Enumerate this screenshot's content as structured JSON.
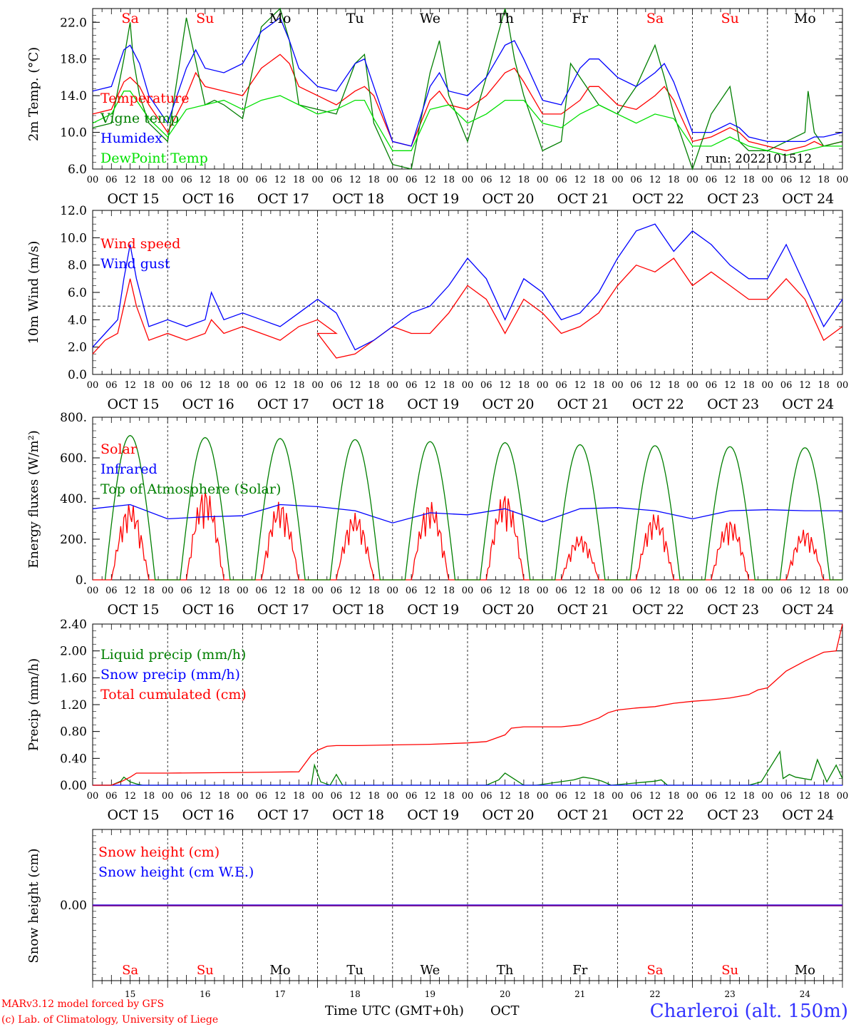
{
  "meta": {
    "footer_left_1": "MARv3.12 model forced by GFS",
    "footer_left_2": "(c) Lab. of Climatology, University of Liege",
    "x_title": "Time UTC (GMT+0h)",
    "x_month": "OCT",
    "station": "Charleroi (alt. 150m)",
    "run": "run: 2022101512"
  },
  "time_axis": {
    "hour_labels": [
      "00",
      "06",
      "12",
      "18"
    ],
    "end_label": "00",
    "dates": [
      "OCT 15",
      "OCT 16",
      "OCT 17",
      "OCT 18",
      "OCT 19",
      "OCT 20",
      "OCT 21",
      "OCT 22",
      "OCT 23",
      "OCT 24"
    ],
    "weekdays": [
      "Sa",
      "Su",
      "Mo",
      "Tu",
      "We",
      "Th",
      "Fr",
      "Sa",
      "Su",
      "Mo"
    ],
    "weekend_flags": [
      true,
      true,
      false,
      false,
      false,
      false,
      false,
      true,
      true,
      false
    ],
    "day_numbers": [
      "15",
      "16",
      "17",
      "18",
      "19",
      "20",
      "21",
      "22",
      "23",
      "24"
    ]
  },
  "colors": {
    "red": "#ff0000",
    "green": "#007f00",
    "blue": "#0000ff",
    "light_green": "#00e000",
    "purple": "#7f007f",
    "axis": "#000000"
  },
  "chart_data": [
    {
      "type": "line",
      "panel": "temperature",
      "ylabel": "2m Temp. (°C)",
      "ylim": [
        6.0,
        23.5
      ],
      "yticks": [
        "6.0",
        "10.0",
        "14.0",
        "18.0",
        "22.0"
      ],
      "x_unit": "hours since Oct 15 00 UTC",
      "series": [
        {
          "name": "Temperature",
          "color": "#ff0000",
          "x": [
            0,
            6,
            10,
            12,
            15,
            18,
            24,
            30,
            33,
            36,
            42,
            48,
            54,
            60,
            63,
            66,
            72,
            78,
            84,
            87,
            90,
            96,
            102,
            108,
            111,
            114,
            120,
            126,
            132,
            135,
            138,
            144,
            150,
            156,
            159,
            162,
            168,
            174,
            180,
            183,
            186,
            192,
            198,
            204,
            207,
            210,
            216,
            222,
            228,
            231,
            234,
            240
          ],
          "y": [
            12.0,
            12.5,
            15.5,
            16.0,
            15.0,
            13.0,
            10.0,
            14.0,
            16.5,
            15.0,
            14.5,
            14.0,
            17.0,
            18.5,
            17.5,
            15.0,
            14.0,
            13.0,
            14.5,
            15.0,
            14.0,
            9.0,
            8.5,
            13.5,
            14.5,
            13.0,
            12.5,
            14.0,
            16.5,
            17.0,
            15.5,
            12.0,
            12.0,
            13.5,
            15.0,
            15.0,
            13.0,
            12.5,
            14.0,
            15.0,
            13.5,
            9.0,
            9.5,
            10.5,
            10.0,
            9.0,
            8.5,
            8.0,
            8.5,
            9.0,
            8.5,
            9.0
          ]
        },
        {
          "name": "Vigne temp",
          "color": "#007f00",
          "x": [
            0,
            6,
            10,
            12,
            13,
            15,
            18,
            24,
            30,
            36,
            39,
            42,
            48,
            54,
            60,
            63,
            66,
            72,
            78,
            84,
            87,
            90,
            96,
            102,
            108,
            111,
            114,
            120,
            126,
            132,
            133,
            135,
            138,
            144,
            150,
            153,
            156,
            162,
            168,
            174,
            180,
            183,
            186,
            192,
            198,
            204,
            207,
            210,
            216,
            222,
            228,
            229,
            231,
            234,
            240
          ],
          "y": [
            10.5,
            11.0,
            18.0,
            22.0,
            18.0,
            14.0,
            11.0,
            9.0,
            22.5,
            13.0,
            13.5,
            13.0,
            11.5,
            21.5,
            23.5,
            20.0,
            13.0,
            12.5,
            12.0,
            17.5,
            18.5,
            11.0,
            6.5,
            6.0,
            16.5,
            20.0,
            14.0,
            9.0,
            16.0,
            23.5,
            22.0,
            18.0,
            14.0,
            8.0,
            9.0,
            17.5,
            16.0,
            13.0,
            12.0,
            15.0,
            19.5,
            16.0,
            12.0,
            6.0,
            12.0,
            15.0,
            9.0,
            8.0,
            8.0,
            9.0,
            10.0,
            14.5,
            10.0,
            8.5,
            9.0
          ]
        },
        {
          "name": "Humidex",
          "color": "#0000ff",
          "x": [
            0,
            6,
            10,
            12,
            15,
            18,
            24,
            30,
            33,
            36,
            42,
            48,
            54,
            60,
            63,
            66,
            72,
            78,
            84,
            87,
            90,
            96,
            102,
            108,
            111,
            114,
            120,
            126,
            132,
            135,
            138,
            144,
            150,
            156,
            159,
            162,
            168,
            174,
            180,
            183,
            186,
            192,
            198,
            204,
            207,
            210,
            216,
            222,
            228,
            231,
            234,
            240
          ],
          "y": [
            14.5,
            15.0,
            19.0,
            19.5,
            17.5,
            14.0,
            11.0,
            17.0,
            19.0,
            17.0,
            16.5,
            17.5,
            21.0,
            22.5,
            20.0,
            17.0,
            15.0,
            14.5,
            17.5,
            18.0,
            15.0,
            9.0,
            8.5,
            15.0,
            16.5,
            14.5,
            14.0,
            16.0,
            19.5,
            20.0,
            18.0,
            13.5,
            13.0,
            17.0,
            18.0,
            18.0,
            16.0,
            15.0,
            16.5,
            17.5,
            15.5,
            10.0,
            10.0,
            11.0,
            10.5,
            9.5,
            9.0,
            9.0,
            9.0,
            9.5,
            9.5,
            10.0
          ]
        },
        {
          "name": "DewPoint Temp",
          "color": "#00e000",
          "x": [
            0,
            6,
            10,
            12,
            15,
            18,
            24,
            30,
            36,
            42,
            48,
            54,
            60,
            66,
            72,
            78,
            84,
            87,
            90,
            96,
            102,
            108,
            114,
            120,
            126,
            132,
            138,
            144,
            150,
            156,
            162,
            168,
            174,
            180,
            186,
            192,
            198,
            204,
            210,
            216,
            222,
            228,
            234,
            240
          ],
          "y": [
            11.0,
            12.0,
            14.5,
            14.5,
            13.0,
            11.5,
            9.5,
            12.5,
            13.0,
            13.5,
            12.5,
            13.5,
            14.0,
            13.0,
            12.0,
            12.5,
            13.5,
            13.5,
            11.5,
            8.0,
            8.0,
            12.5,
            13.0,
            11.0,
            12.0,
            13.5,
            13.5,
            11.0,
            10.5,
            12.0,
            13.0,
            12.0,
            11.0,
            12.0,
            11.5,
            8.5,
            8.5,
            9.5,
            8.5,
            8.0,
            7.5,
            8.0,
            8.5,
            8.5
          ]
        }
      ]
    },
    {
      "type": "line",
      "panel": "wind",
      "ylabel": "10m Wind (m/s)",
      "ylim": [
        0.0,
        12.0
      ],
      "yticks": [
        "0.0",
        "2.0",
        "4.0",
        "6.0",
        "8.0",
        "10.0",
        "12.0"
      ],
      "reference_line": 5.0,
      "series": [
        {
          "name": "Wind speed",
          "color": "#ff0000",
          "x": [
            0,
            4,
            8,
            10,
            12,
            14,
            18,
            24,
            30,
            36,
            38,
            42,
            48,
            54,
            60,
            66,
            72,
            78,
            72,
            78,
            84,
            90,
            96,
            102,
            108,
            114,
            120,
            126,
            132,
            138,
            144,
            150,
            156,
            162,
            168,
            174,
            180,
            186,
            192,
            198,
            204,
            210,
            216,
            222,
            228,
            234,
            240
          ],
          "y": [
            1.5,
            2.5,
            3.0,
            5.0,
            7.0,
            5.0,
            2.5,
            3.0,
            2.5,
            3.0,
            4.0,
            3.0,
            3.5,
            3.0,
            2.5,
            3.5,
            4.0,
            3.0,
            3.0,
            1.2,
            1.5,
            2.5,
            3.5,
            3.0,
            3.0,
            4.5,
            6.5,
            5.5,
            3.0,
            5.5,
            4.5,
            3.0,
            3.5,
            4.5,
            6.5,
            8.0,
            7.5,
            8.5,
            6.5,
            7.5,
            6.5,
            5.5,
            5.5,
            7.0,
            5.5,
            2.5,
            3.5
          ]
        },
        {
          "name": "Wind gust",
          "color": "#0000ff",
          "x": [
            0,
            4,
            8,
            10,
            12,
            14,
            18,
            24,
            30,
            36,
            38,
            42,
            48,
            54,
            60,
            66,
            72,
            78,
            84,
            90,
            96,
            102,
            108,
            114,
            120,
            126,
            132,
            138,
            144,
            150,
            156,
            162,
            168,
            174,
            180,
            186,
            192,
            198,
            204,
            210,
            216,
            222,
            228,
            234,
            240
          ],
          "y": [
            2.0,
            3.0,
            4.0,
            7.0,
            9.5,
            7.0,
            3.5,
            4.0,
            3.5,
            4.0,
            6.0,
            4.0,
            4.5,
            4.0,
            3.5,
            4.5,
            5.5,
            4.5,
            1.8,
            2.5,
            3.5,
            4.5,
            5.0,
            6.5,
            8.5,
            7.0,
            4.0,
            7.0,
            6.0,
            4.0,
            4.5,
            6.0,
            8.5,
            10.5,
            11.0,
            9.0,
            10.5,
            9.5,
            8.0,
            7.0,
            7.0,
            9.5,
            6.5,
            3.5,
            5.5
          ]
        }
      ]
    },
    {
      "type": "line",
      "panel": "energy",
      "ylabel": "Energy fluxes (W/m²)",
      "ylim": [
        0,
        800
      ],
      "yticks": [
        "0.",
        "200.",
        "400.",
        "600.",
        "800."
      ],
      "series": [
        {
          "name": "Solar",
          "color": "#ff0000",
          "daily_peak": [
            380,
            450,
            390,
            330,
            390,
            430,
            220,
            330,
            300,
            250
          ]
        },
        {
          "name": "Infrared",
          "color": "#0000ff",
          "x": [
            0,
            12,
            24,
            36,
            48,
            60,
            72,
            84,
            96,
            108,
            120,
            132,
            144,
            156,
            168,
            180,
            192,
            204,
            216,
            228,
            240
          ],
          "y": [
            350,
            370,
            300,
            310,
            315,
            370,
            360,
            340,
            280,
            330,
            320,
            350,
            285,
            350,
            355,
            340,
            300,
            340,
            345,
            340,
            340
          ]
        },
        {
          "name": "Top of Atmosphere (Solar)",
          "color": "#007f00",
          "daily_peak": [
            710,
            700,
            695,
            690,
            680,
            675,
            665,
            660,
            655,
            650
          ]
        }
      ]
    },
    {
      "type": "line",
      "panel": "precip",
      "ylabel": "Precip (mm/h)",
      "ylim": [
        0.0,
        2.4
      ],
      "yticks": [
        "0.00",
        "0.40",
        "0.80",
        "1.20",
        "1.60",
        "2.00",
        "2.40"
      ],
      "series": [
        {
          "name": "Liquid precip (mm/h)",
          "color": "#007f00",
          "x": [
            0,
            6,
            9,
            10,
            12,
            14,
            16,
            60,
            70,
            71,
            73,
            76,
            78,
            80,
            90,
            126,
            130,
            132,
            134,
            136,
            138,
            142,
            154,
            157,
            160,
            163,
            166,
            180,
            182,
            184,
            190,
            210,
            214,
            220,
            221,
            223,
            225,
            230,
            232,
            235,
            238,
            240
          ],
          "y": [
            0,
            0,
            0.06,
            0.12,
            0.05,
            0.02,
            0,
            0,
            0,
            0.3,
            0.05,
            0,
            0.16,
            0,
            0,
            0,
            0.08,
            0.18,
            0.12,
            0.06,
            0,
            0,
            0.08,
            0.12,
            0.1,
            0.06,
            0,
            0.06,
            0.08,
            0,
            0,
            0,
            0.05,
            0.5,
            0.1,
            0.16,
            0.12,
            0.08,
            0.38,
            0.05,
            0.3,
            0.1
          ]
        },
        {
          "name": "Snow precip (mm/h)",
          "color": "#0000ff",
          "x": [
            0,
            240
          ],
          "y": [
            0,
            0
          ]
        },
        {
          "name": "Total cumulated (cm)",
          "color": "#ff0000",
          "x": [
            0,
            6,
            9,
            12,
            14,
            24,
            48,
            66,
            70,
            72,
            75,
            78,
            84,
            96,
            108,
            120,
            126,
            132,
            134,
            138,
            144,
            150,
            156,
            162,
            165,
            168,
            174,
            180,
            186,
            192,
            198,
            204,
            210,
            213,
            216,
            222,
            228,
            234,
            238,
            240
          ],
          "y": [
            0,
            0,
            0.05,
            0.12,
            0.18,
            0.18,
            0.19,
            0.2,
            0.45,
            0.52,
            0.58,
            0.59,
            0.59,
            0.6,
            0.61,
            0.63,
            0.65,
            0.75,
            0.85,
            0.87,
            0.87,
            0.87,
            0.9,
            1.0,
            1.08,
            1.12,
            1.15,
            1.17,
            1.22,
            1.25,
            1.27,
            1.3,
            1.35,
            1.42,
            1.45,
            1.7,
            1.85,
            1.98,
            2.0,
            2.4
          ]
        }
      ]
    },
    {
      "type": "line",
      "panel": "snow",
      "ylabel": "Snow height (cm)",
      "ylim": [
        -1,
        1
      ],
      "yticks": [
        "0.00"
      ],
      "series": [
        {
          "name": "Snow height (cm)",
          "color": "#ff0000",
          "x": [
            0,
            240
          ],
          "y": [
            0,
            0
          ]
        },
        {
          "name": "Snow height (cm W.E.)",
          "color": "#0000ff",
          "x": [
            0,
            240
          ],
          "y": [
            0,
            0
          ]
        }
      ]
    }
  ]
}
